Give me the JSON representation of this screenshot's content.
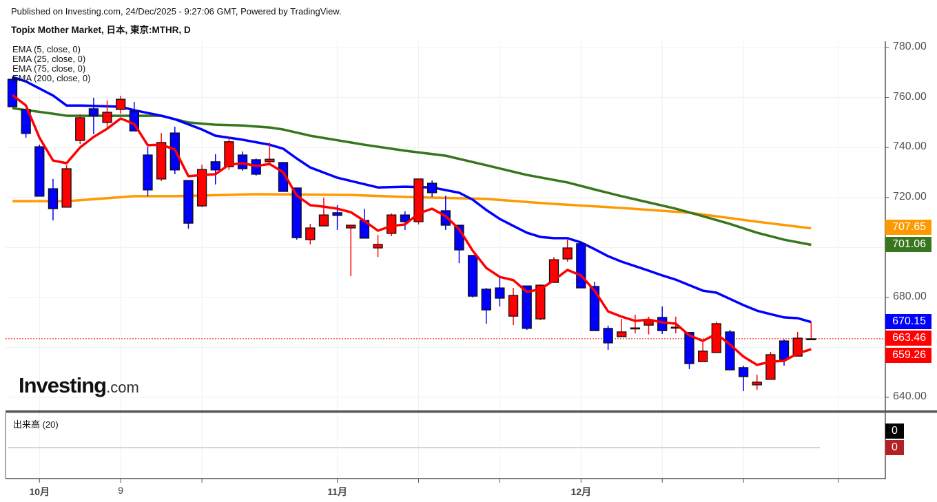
{
  "header": {
    "published": "Published on Investing.com, 24/Dec/2025 - 9:27:06 GMT, Powered by TradingView.",
    "title": "Topix Mother Market, 日本, 東京:MTHR, D"
  },
  "indicators": [
    "EMA (5, close, 0)",
    "EMA (25, close, 0)",
    "EMA (75, close, 0)",
    "EMA (200, close, 0)"
  ],
  "volume_label": "出来高 (20)",
  "logo": {
    "main": "Investing",
    "suffix": ".com"
  },
  "colors": {
    "up": "#ff0000",
    "down": "#0000ff",
    "ema5": "#ff0000",
    "ema25": "#0000ff",
    "ema75": "#38761d",
    "ema200": "#ff9900",
    "volume_tag_1": "#000000",
    "volume_tag_2": "#b22222"
  },
  "chart_data": {
    "type": "candlestick",
    "ylim": [
      636,
      783
    ],
    "yticks": [
      "780.00",
      "760.00",
      "740.00",
      "720.00",
      "680.00",
      "640.00"
    ],
    "xlabels": [
      {
        "index": 2,
        "text": "10月",
        "bold": true
      },
      {
        "index": 8,
        "text": "9",
        "bold": false
      },
      {
        "index": 24,
        "text": "11月",
        "bold": true
      },
      {
        "index": 42,
        "text": "12月",
        "bold": true
      }
    ],
    "xticks": [
      2,
      8,
      14,
      24,
      30,
      36,
      42,
      48,
      54,
      61
    ],
    "last_price": 663.46,
    "price_tags": [
      {
        "value": "707.65",
        "color": "#ff9900"
      },
      {
        "value": "701.06",
        "color": "#38761d"
      },
      {
        "value": "670.15",
        "color": "#0000ff"
      },
      {
        "value": "663.46",
        "color": "#ff0000"
      },
      {
        "value": "659.26",
        "color": "#ff0000"
      }
    ],
    "volume_tags": [
      "0",
      "0"
    ],
    "ohlc": [
      [
        767.3,
        768.2,
        756.3,
        756.3
      ],
      [
        755.2,
        755.2,
        743.9,
        745.6
      ],
      [
        740.3,
        741.1,
        720.5,
        720.5
      ],
      [
        723.5,
        727.4,
        710.8,
        715.5
      ],
      [
        716.1,
        732.9,
        716.1,
        731.5
      ],
      [
        742.8,
        753.3,
        741.4,
        751.9
      ],
      [
        755.5,
        759.9,
        745.3,
        752.7
      ],
      [
        750.0,
        758.8,
        748.0,
        754.1
      ],
      [
        755.2,
        760.7,
        753.5,
        759.3
      ],
      [
        754.6,
        758.2,
        746.6,
        746.6
      ],
      [
        737.0,
        740.3,
        720.5,
        723.0
      ],
      [
        727.4,
        745.8,
        726.5,
        742.0
      ],
      [
        745.8,
        748.3,
        729.3,
        731.0
      ],
      [
        726.8,
        726.8,
        707.5,
        709.7
      ],
      [
        716.6,
        733.1,
        716.1,
        731.2
      ],
      [
        734.3,
        737.3,
        725.2,
        731.0
      ],
      [
        732.3,
        744.2,
        731.0,
        742.3
      ],
      [
        737.0,
        738.4,
        730.7,
        731.5
      ],
      [
        735.1,
        735.6,
        728.7,
        729.3
      ],
      [
        734.3,
        742.0,
        733.7,
        735.3
      ],
      [
        734.0,
        734.0,
        722.4,
        722.4
      ],
      [
        723.8,
        723.8,
        703.1,
        703.9
      ],
      [
        703.1,
        709.4,
        701.2,
        707.8
      ],
      [
        708.6,
        719.9,
        708.6,
        713.0
      ],
      [
        713.9,
        716.9,
        707.0,
        712.8
      ],
      [
        707.8,
        708.9,
        688.5,
        708.9
      ],
      [
        710.8,
        715.5,
        703.7,
        703.7
      ],
      [
        699.8,
        705.0,
        696.2,
        701.2
      ],
      [
        705.6,
        713.6,
        704.5,
        713.0
      ],
      [
        713.0,
        714.5,
        707.0,
        710.3
      ],
      [
        710.3,
        727.4,
        709.2,
        727.4
      ],
      [
        725.7,
        726.8,
        720.2,
        721.9
      ],
      [
        714.7,
        720.7,
        707.0,
        708.9
      ],
      [
        708.9,
        708.9,
        693.7,
        699.0
      ],
      [
        696.8,
        696.8,
        680.0,
        680.5
      ],
      [
        683.3,
        683.8,
        669.5,
        675.0
      ],
      [
        683.8,
        688.8,
        676.4,
        679.7
      ],
      [
        672.5,
        683.8,
        668.9,
        680.8
      ],
      [
        684.6,
        684.6,
        667.0,
        667.6
      ],
      [
        671.4,
        685.2,
        670.9,
        684.9
      ],
      [
        686.0,
        696.2,
        686.0,
        695.1
      ],
      [
        695.4,
        703.1,
        694.3,
        699.8
      ],
      [
        701.5,
        701.5,
        683.8,
        683.8
      ],
      [
        684.4,
        686.3,
        666.7,
        666.7
      ],
      [
        667.6,
        668.7,
        659.0,
        661.8
      ],
      [
        664.3,
        671.4,
        664.3,
        666.2
      ],
      [
        667.8,
        673.1,
        665.6,
        667.8
      ],
      [
        668.9,
        672.3,
        665.2,
        671.1
      ],
      [
        672.0,
        676.4,
        665.4,
        666.7
      ],
      [
        668.1,
        672.3,
        665.6,
        668.1
      ],
      [
        666.0,
        666.0,
        651.3,
        653.5
      ],
      [
        654.3,
        662.1,
        654.3,
        658.5
      ],
      [
        657.9,
        670.3,
        657.9,
        669.5
      ],
      [
        666.2,
        667.0,
        651.0,
        651.0
      ],
      [
        651.9,
        652.7,
        642.5,
        648.3
      ],
      [
        645.0,
        649.1,
        643.0,
        646.1
      ],
      [
        647.2,
        658.2,
        647.2,
        657.1
      ],
      [
        662.6,
        663.2,
        652.7,
        655.2
      ],
      [
        656.5,
        666.2,
        656.5,
        663.7
      ],
      [
        663.3,
        670.0,
        663.3,
        663.46
      ]
    ],
    "ema5": [
      [
        0,
        761.0
      ],
      [
        1,
        756.8
      ],
      [
        2,
        743.9
      ],
      [
        3,
        734.8
      ],
      [
        4,
        733.7
      ],
      [
        5,
        740.0
      ],
      [
        6,
        744.2
      ],
      [
        7,
        747.5
      ],
      [
        8,
        751.6
      ],
      [
        9,
        749.4
      ],
      [
        10,
        740.9
      ],
      [
        11,
        741.1
      ],
      [
        12,
        739.2
      ],
      [
        13,
        728.5
      ],
      [
        14,
        729.0
      ],
      [
        15,
        729.3
      ],
      [
        16,
        733.1
      ],
      [
        17,
        733.7
      ],
      [
        18,
        732.6
      ],
      [
        19,
        733.4
      ],
      [
        20,
        730.1
      ],
      [
        21,
        720.8
      ],
      [
        22,
        716.9
      ],
      [
        23,
        716.3
      ],
      [
        24,
        715.5
      ],
      [
        25,
        714.1
      ],
      [
        26,
        710.6
      ],
      [
        27,
        706.7
      ],
      [
        28,
        708.6
      ],
      [
        29,
        709.2
      ],
      [
        30,
        713.6
      ],
      [
        31,
        715.5
      ],
      [
        32,
        712.5
      ],
      [
        33,
        707.3
      ],
      [
        34,
        698.7
      ],
      [
        35,
        691.8
      ],
      [
        36,
        688.2
      ],
      [
        37,
        686.9
      ],
      [
        38,
        682.2
      ],
      [
        39,
        683.3
      ],
      [
        40,
        686.9
      ],
      [
        41,
        691.0
      ],
      [
        42,
        688.8
      ],
      [
        43,
        682.7
      ],
      [
        44,
        674.4
      ],
      [
        45,
        672.3
      ],
      [
        46,
        670.6
      ],
      [
        47,
        671.1
      ],
      [
        48,
        670.0
      ],
      [
        49,
        669.5
      ],
      [
        50,
        664.8
      ],
      [
        51,
        662.6
      ],
      [
        52,
        665.4
      ],
      [
        53,
        661.2
      ],
      [
        54,
        656.3
      ],
      [
        55,
        653.0
      ],
      [
        56,
        654.3
      ],
      [
        57,
        654.6
      ],
      [
        58,
        657.6
      ],
      [
        59,
        659.26
      ]
    ],
    "ema25": [
      [
        0,
        768.2
      ],
      [
        1,
        766.4
      ],
      [
        3,
        760.8
      ],
      [
        4,
        756.8
      ],
      [
        5,
        756.8
      ],
      [
        8,
        756.3
      ],
      [
        9,
        754.9
      ],
      [
        11,
        752.7
      ],
      [
        12,
        751.3
      ],
      [
        14,
        747.2
      ],
      [
        15,
        744.7
      ],
      [
        17,
        743.1
      ],
      [
        19,
        741.1
      ],
      [
        20,
        739.5
      ],
      [
        21,
        735.6
      ],
      [
        22,
        732.0
      ],
      [
        24,
        727.9
      ],
      [
        27,
        724.0
      ],
      [
        29,
        724.3
      ],
      [
        31,
        724.0
      ],
      [
        33,
        721.9
      ],
      [
        34,
        719.1
      ],
      [
        35,
        715.0
      ],
      [
        36,
        711.4
      ],
      [
        37,
        708.6
      ],
      [
        38,
        705.9
      ],
      [
        39,
        704.2
      ],
      [
        40,
        703.7
      ],
      [
        41,
        703.7
      ],
      [
        42,
        702.0
      ],
      [
        43,
        699.3
      ],
      [
        44,
        696.5
      ],
      [
        45,
        694.3
      ],
      [
        47,
        690.7
      ],
      [
        48,
        688.8
      ],
      [
        49,
        687.1
      ],
      [
        50,
        684.9
      ],
      [
        51,
        682.7
      ],
      [
        52,
        681.9
      ],
      [
        53,
        679.4
      ],
      [
        54,
        676.9
      ],
      [
        55,
        674.7
      ],
      [
        56,
        673.3
      ],
      [
        57,
        672.0
      ],
      [
        58,
        671.7
      ],
      [
        59,
        670.15
      ]
    ],
    "ema75": [
      [
        0,
        755.7
      ],
      [
        3,
        753.5
      ],
      [
        4,
        752.7
      ],
      [
        11,
        752.7
      ],
      [
        13,
        750.0
      ],
      [
        15,
        749.1
      ],
      [
        17,
        748.8
      ],
      [
        19,
        748.0
      ],
      [
        20,
        747.2
      ],
      [
        22,
        744.7
      ],
      [
        26,
        741.1
      ],
      [
        29,
        738.7
      ],
      [
        32,
        736.7
      ],
      [
        35,
        732.9
      ],
      [
        38,
        729.0
      ],
      [
        41,
        726.0
      ],
      [
        43,
        723.2
      ],
      [
        45,
        720.5
      ],
      [
        47,
        718.0
      ],
      [
        49,
        715.5
      ],
      [
        51,
        712.5
      ],
      [
        53,
        709.4
      ],
      [
        55,
        705.9
      ],
      [
        57,
        703.1
      ],
      [
        59,
        701.06
      ]
    ],
    "ema200": [
      [
        0,
        718.5
      ],
      [
        4,
        718.5
      ],
      [
        9,
        720.5
      ],
      [
        12,
        720.5
      ],
      [
        18,
        721.3
      ],
      [
        25,
        721.0
      ],
      [
        29,
        720.2
      ],
      [
        35,
        719.4
      ],
      [
        40,
        717.4
      ],
      [
        45,
        715.8
      ],
      [
        50,
        713.9
      ],
      [
        55,
        710.3
      ],
      [
        59,
        707.65
      ]
    ],
    "grid": true
  }
}
